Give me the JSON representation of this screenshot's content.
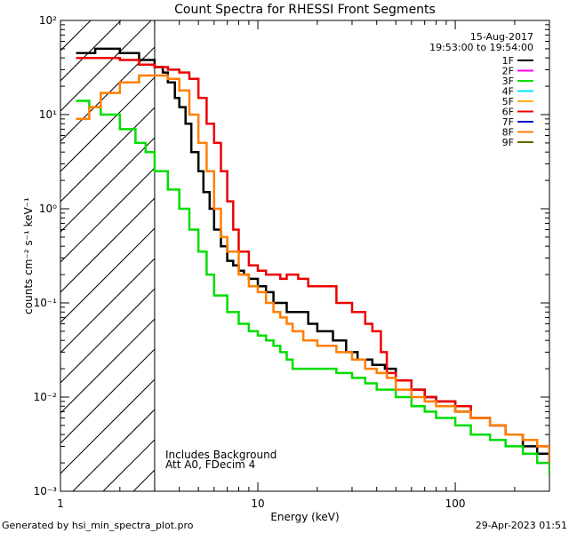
{
  "chart_data": {
    "type": "line",
    "title": "Count Spectra for RHESSI Front Segments",
    "xlabel": "Energy (keV)",
    "ylabel": "counts cm⁻² s⁻¹ keV⁻¹",
    "x_scale": "log",
    "y_scale": "log",
    "xlim": [
      1,
      300
    ],
    "ylim": [
      0.001,
      100
    ],
    "x_major_ticks": [
      {
        "value": 1,
        "label": "1"
      },
      {
        "value": 10,
        "label": "10"
      },
      {
        "value": 100,
        "label": "100"
      }
    ],
    "y_major_ticks": [
      {
        "value": 0.001,
        "label": "10⁻³"
      },
      {
        "value": 0.01,
        "label": "10⁻²"
      },
      {
        "value": 0.1,
        "label": "10⁻¹"
      },
      {
        "value": 1,
        "label": "10⁰"
      },
      {
        "value": 10,
        "label": "10¹"
      },
      {
        "value": 100,
        "label": "10²"
      }
    ],
    "excluded_region_below_keV": 3,
    "date": "15-Aug-2017",
    "time_range": "19:53:00 to 19:54:00",
    "annotations": [
      "Includes Background",
      "Att A0, FDecim 4"
    ],
    "legend": [
      {
        "name": "1F",
        "color": "#000000"
      },
      {
        "name": "2F",
        "color": "#ff00ff"
      },
      {
        "name": "3F",
        "color": "#00dd00"
      },
      {
        "name": "4F",
        "color": "#00e5ff"
      },
      {
        "name": "5F",
        "color": "#ffb000"
      },
      {
        "name": "6F",
        "color": "#ee0000"
      },
      {
        "name": "7F",
        "color": "#0000cc"
      },
      {
        "name": "8F",
        "color": "#ff7f00"
      },
      {
        "name": "9F",
        "color": "#666600"
      }
    ],
    "series": [
      {
        "name": "1F",
        "color": "#000000",
        "points": [
          [
            1.2,
            45
          ],
          [
            1.5,
            50
          ],
          [
            2.0,
            45
          ],
          [
            2.5,
            38
          ],
          [
            3.0,
            32
          ],
          [
            3.3,
            28
          ],
          [
            3.5,
            22
          ],
          [
            3.8,
            15
          ],
          [
            4.0,
            12
          ],
          [
            4.3,
            8
          ],
          [
            4.6,
            4
          ],
          [
            5.0,
            2.5
          ],
          [
            5.3,
            1.5
          ],
          [
            5.7,
            1
          ],
          [
            6.0,
            0.6
          ],
          [
            6.5,
            0.4
          ],
          [
            7.0,
            0.28
          ],
          [
            7.5,
            0.25
          ],
          [
            8.0,
            0.22
          ],
          [
            8.5,
            0.2
          ],
          [
            9.0,
            0.18
          ],
          [
            10,
            0.15
          ],
          [
            11,
            0.13
          ],
          [
            12,
            0.1
          ],
          [
            14,
            0.08
          ],
          [
            16,
            0.08
          ],
          [
            18,
            0.06
          ],
          [
            20,
            0.05
          ],
          [
            24,
            0.04
          ],
          [
            28,
            0.03
          ],
          [
            32,
            0.025
          ],
          [
            38,
            0.022
          ],
          [
            44,
            0.02
          ],
          [
            50,
            0.015
          ],
          [
            60,
            0.012
          ],
          [
            70,
            0.01
          ],
          [
            80,
            0.009
          ],
          [
            100,
            0.007
          ],
          [
            120,
            0.006
          ],
          [
            150,
            0.005
          ],
          [
            180,
            0.004
          ],
          [
            220,
            0.003
          ],
          [
            260,
            0.0025
          ],
          [
            300,
            0.002
          ]
        ]
      },
      {
        "name": "3F",
        "color": "#00dd00",
        "points": [
          [
            1.2,
            14
          ],
          [
            1.4,
            12
          ],
          [
            1.6,
            10
          ],
          [
            2.0,
            7
          ],
          [
            2.4,
            5
          ],
          [
            2.7,
            4
          ],
          [
            3.0,
            2.5
          ],
          [
            3.5,
            1.6
          ],
          [
            4.0,
            1.0
          ],
          [
            4.5,
            0.6
          ],
          [
            5.0,
            0.35
          ],
          [
            5.5,
            0.2
          ],
          [
            6.0,
            0.12
          ],
          [
            7.0,
            0.08
          ],
          [
            8.0,
            0.06
          ],
          [
            9.0,
            0.05
          ],
          [
            10,
            0.045
          ],
          [
            11,
            0.04
          ],
          [
            12,
            0.035
          ],
          [
            13,
            0.03
          ],
          [
            14,
            0.025
          ],
          [
            15,
            0.02
          ],
          [
            17,
            0.02
          ],
          [
            20,
            0.02
          ],
          [
            25,
            0.018
          ],
          [
            30,
            0.016
          ],
          [
            35,
            0.014
          ],
          [
            40,
            0.012
          ],
          [
            50,
            0.01
          ],
          [
            60,
            0.008
          ],
          [
            70,
            0.007
          ],
          [
            80,
            0.006
          ],
          [
            100,
            0.005
          ],
          [
            120,
            0.004
          ],
          [
            150,
            0.0035
          ],
          [
            180,
            0.003
          ],
          [
            220,
            0.0025
          ],
          [
            260,
            0.002
          ],
          [
            300,
            0.0015
          ]
        ]
      },
      {
        "name": "6F",
        "color": "#ee0000",
        "points": [
          [
            1.2,
            40
          ],
          [
            1.5,
            40
          ],
          [
            2.0,
            38
          ],
          [
            2.5,
            34
          ],
          [
            3.0,
            32
          ],
          [
            3.5,
            30
          ],
          [
            4.0,
            28
          ],
          [
            4.5,
            24
          ],
          [
            5.0,
            15
          ],
          [
            5.5,
            8
          ],
          [
            6.0,
            5
          ],
          [
            6.5,
            2.5
          ],
          [
            7.0,
            1.2
          ],
          [
            7.5,
            0.6
          ],
          [
            8.0,
            0.35
          ],
          [
            9.0,
            0.25
          ],
          [
            10,
            0.22
          ],
          [
            11,
            0.2
          ],
          [
            12,
            0.2
          ],
          [
            13,
            0.18
          ],
          [
            14,
            0.2
          ],
          [
            16,
            0.18
          ],
          [
            18,
            0.15
          ],
          [
            20,
            0.15
          ],
          [
            22,
            0.15
          ],
          [
            25,
            0.1
          ],
          [
            28,
            0.1
          ],
          [
            30,
            0.08
          ],
          [
            35,
            0.06
          ],
          [
            38,
            0.05
          ],
          [
            42,
            0.03
          ],
          [
            45,
            0.018
          ],
          [
            50,
            0.015
          ],
          [
            60,
            0.012
          ],
          [
            70,
            0.01
          ],
          [
            80,
            0.009
          ],
          [
            100,
            0.008
          ],
          [
            120,
            0.006
          ],
          [
            150,
            0.005
          ],
          [
            180,
            0.004
          ],
          [
            220,
            0.0035
          ],
          [
            260,
            0.003
          ],
          [
            300,
            0.0025
          ]
        ]
      },
      {
        "name": "8F",
        "color": "#ff7f00",
        "points": [
          [
            1.2,
            9
          ],
          [
            1.4,
            12
          ],
          [
            1.6,
            17
          ],
          [
            2.0,
            22
          ],
          [
            2.5,
            26
          ],
          [
            3.0,
            26
          ],
          [
            3.5,
            24
          ],
          [
            4.0,
            18
          ],
          [
            4.5,
            10
          ],
          [
            5.0,
            5
          ],
          [
            5.5,
            2.5
          ],
          [
            6.0,
            1.0
          ],
          [
            6.5,
            0.5
          ],
          [
            7.0,
            0.35
          ],
          [
            8.0,
            0.2
          ],
          [
            9.0,
            0.15
          ],
          [
            10,
            0.13
          ],
          [
            11,
            0.1
          ],
          [
            12,
            0.08
          ],
          [
            13,
            0.07
          ],
          [
            14,
            0.06
          ],
          [
            15,
            0.05
          ],
          [
            17,
            0.04
          ],
          [
            20,
            0.035
          ],
          [
            25,
            0.03
          ],
          [
            30,
            0.025
          ],
          [
            35,
            0.02
          ],
          [
            40,
            0.018
          ],
          [
            45,
            0.016
          ],
          [
            50,
            0.012
          ],
          [
            60,
            0.01
          ],
          [
            70,
            0.009
          ],
          [
            80,
            0.008
          ],
          [
            100,
            0.007
          ],
          [
            120,
            0.006
          ],
          [
            150,
            0.005
          ],
          [
            180,
            0.004
          ],
          [
            220,
            0.0035
          ],
          [
            260,
            0.003
          ],
          [
            300,
            0.002
          ]
        ]
      }
    ]
  },
  "footer": {
    "generated_by": "Generated by hsi_min_spectra_plot.pro",
    "timestamp": "29-Apr-2023 01:51"
  }
}
